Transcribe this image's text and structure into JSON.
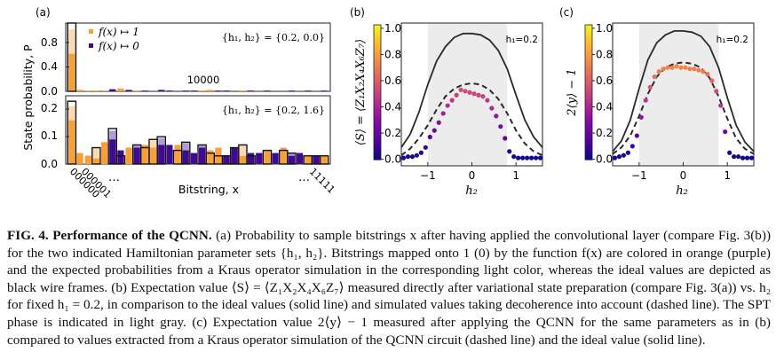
{
  "panel_a": {
    "tag": "(a)",
    "ylabel": "State probability, P",
    "legend": [
      {
        "label": "f(x) ↦ 1",
        "color": "#f7a03a"
      },
      {
        "label": "f(x) ↦ 0",
        "color": "#3d0a91"
      }
    ],
    "top_params": "{h₁, h₂} = {0.2, 0.0}",
    "bottom_params": "{h₁, h₂} = {0.2, 1.6}",
    "annotation": "10000",
    "top_yticks": [
      "0.0",
      "0.4",
      "0.8"
    ],
    "bottom_yticks": [
      "0.0",
      "0.1",
      "0.2"
    ],
    "xlabel": "Bitstring, x",
    "xtick_left": "000000",
    "xtick_left2": "000001",
    "xtick_dots_left": "…",
    "xtick_dots_right": "…",
    "xtick_right": "11111"
  },
  "panel_b": {
    "tag": "(b)",
    "ylabel": "⟨S⟩ = ⟨Z₁X₂X₄X₆Z₇⟩",
    "xlabel": "h₂",
    "inset": "h₁=0.2",
    "yticks": [
      "0.0",
      "0.2",
      "0.4",
      "0.6",
      "0.8",
      "1.0"
    ],
    "xticks": [
      "−1",
      "0",
      "1"
    ]
  },
  "panel_c": {
    "tag": "(c)",
    "ylabel": "2⟨y⟩ − 1",
    "xlabel": "h₂",
    "inset": "h₁=0.2",
    "yticks": [
      "0.0",
      "0.2",
      "0.4",
      "0.6",
      "0.8",
      "1.0"
    ],
    "xticks": [
      "−1",
      "0",
      "1"
    ]
  },
  "colors": {
    "one": "#f7a03a",
    "zero": "#3d0a91",
    "spt": "#ececec"
  },
  "caption": {
    "fig_label": "FIG. 4.",
    "bold_title": "Performance of the QCNN.",
    "text": "(a) Probability to sample bitstrings x after having applied the convolutional layer (compare Fig. 3(b)) for the two indicated Hamiltonian parameter sets {h₁, h₂}. Bitstrings mapped onto 1 (0) by the function f(x) are colored in orange (purple) and the expected probabilities from a Kraus operator simulation in the corresponding light color, whereas the ideal values are depicted as black wire frames. (b) Expectation value ⟨S⟩ = ⟨Z₁X₂X₄X₆Z₇⟩ measured directly after variational state preparation (compare Fig. 3(a)) vs. h₂ for fixed h₁ = 0.2, in comparison to the ideal values (solid line) and simulated values taking decoherence into account (dashed line). The SPT phase is indicated in light gray. (c) Expectation value 2⟨y⟩ − 1 measured after applying the QCNN for the same parameters as in (b) compared to values extracted from a Kraus operator simulation of the QCNN circuit (dashed line) and the ideal value (solid line)."
  },
  "chart_data": [
    {
      "type": "bar",
      "title": "",
      "panel": "a-top",
      "params": "{h1,h2}={0.2,0.0}",
      "ylabel": "State probability, P",
      "ylim": [
        0,
        1.0
      ],
      "series": [
        {
          "name": "f(x) ↦ 1",
          "values": [
            0.55,
            0.02,
            0.01,
            0.01,
            0.01,
            0.0,
            0.04,
            0.0,
            0.01,
            0.0,
            0.0,
            0.0,
            0.0,
            0.0,
            0.0,
            0.0,
            0.01,
            0.02,
            0.0,
            0.0,
            0.0,
            0.01,
            0.0,
            0.0,
            0.0,
            0.0,
            0.0,
            0.0,
            0.0,
            0.0,
            0.0,
            0.0
          ]
        },
        {
          "name": "f(x) ↦ 0",
          "values": [
            0.0,
            0.0,
            0.02,
            0.03,
            0.0,
            0.03,
            0.0,
            0.02,
            0.0,
            0.01,
            0.0,
            0.02,
            0.01,
            0.0,
            0.01,
            0.01,
            0.0,
            0.0,
            0.01,
            0.01,
            0.0,
            0.0,
            0.01,
            0.0,
            0.01,
            0.0,
            0.0,
            0.01,
            0.0,
            0.01,
            0.0,
            0.01
          ]
        },
        {
          "name": "ideal",
          "values": [
            1.0,
            0.0,
            0.0,
            0.0,
            0.0,
            0.0,
            0.0,
            0.0,
            0.0,
            0.0,
            0.0,
            0.0,
            0.0,
            0.0,
            0.0,
            0.0,
            0.0,
            0.0,
            0.0,
            0.0,
            0.0,
            0.0,
            0.0,
            0.0,
            0.0,
            0.0,
            0.0,
            0.0,
            0.0,
            0.0,
            0.0,
            0.0
          ]
        }
      ]
    },
    {
      "type": "bar",
      "title": "",
      "panel": "a-bottom",
      "params": "{h1,h2}={0.2,1.6}",
      "ylim": [
        0,
        0.25
      ],
      "series": [
        {
          "name": "f(x) ↦ 1",
          "values": [
            0.16,
            0.04,
            0.03,
            0.02,
            0.08,
            0.0,
            0.0,
            0.06,
            0.0,
            0.07,
            0.06,
            0.0,
            0.0,
            0.07,
            0.0,
            0.0,
            0.0,
            0.05,
            0.06,
            0.0,
            0.0,
            0.03,
            0.0,
            0.0,
            0.05,
            0.0,
            0.06,
            0.0,
            0.0,
            0.03,
            0.0,
            0.03
          ]
        },
        {
          "name": "f(x) ↦ 0",
          "values": [
            0.0,
            0.0,
            0.0,
            0.0,
            0.0,
            0.09,
            0.05,
            0.0,
            0.06,
            0.0,
            0.0,
            0.07,
            0.07,
            0.0,
            0.05,
            0.04,
            0.06,
            0.0,
            0.0,
            0.03,
            0.06,
            0.0,
            0.04,
            0.04,
            0.0,
            0.04,
            0.0,
            0.03,
            0.04,
            0.0,
            0.03,
            0.0
          ]
        },
        {
          "name": "ideal",
          "values": [
            0.23,
            0.0,
            0.0,
            0.06,
            0.0,
            0.13,
            0.03,
            0.0,
            0.07,
            0.06,
            0.09,
            0.1,
            0.0,
            0.05,
            0.08,
            0.0,
            0.07,
            0.04,
            0.03,
            0.03,
            0.06,
            0.07,
            0.03,
            0.0,
            0.05,
            0.0,
            0.05,
            0.04,
            0.0,
            0.03,
            0.03,
            0.03
          ]
        }
      ]
    },
    {
      "type": "line",
      "title": "",
      "panel": "b",
      "xlabel": "h₂",
      "ylabel": "⟨S⟩ = ⟨Z₁X₂X₄X₆Z₇⟩",
      "xlim": [
        -1.6,
        1.6
      ],
      "ylim": [
        0,
        1.0
      ],
      "spt_range": [
        -1.0,
        0.8
      ],
      "series": [
        {
          "name": "ideal (solid)",
          "x": [
            -1.6,
            -1.4,
            -1.2,
            -1.0,
            -0.8,
            -0.6,
            -0.4,
            -0.2,
            0.0,
            0.2,
            0.4,
            0.6,
            0.8,
            1.0,
            1.2,
            1.4,
            1.6
          ],
          "y": [
            0.09,
            0.19,
            0.36,
            0.57,
            0.75,
            0.86,
            0.93,
            0.96,
            0.96,
            0.95,
            0.91,
            0.83,
            0.69,
            0.49,
            0.3,
            0.17,
            0.09
          ]
        },
        {
          "name": "simulated (dashed)",
          "x": [
            -1.6,
            -1.4,
            -1.2,
            -1.0,
            -0.8,
            -0.6,
            -0.4,
            -0.2,
            0.0,
            0.2,
            0.4,
            0.6,
            0.8,
            1.0,
            1.2,
            1.4,
            1.6
          ],
          "y": [
            0.03,
            0.08,
            0.16,
            0.26,
            0.38,
            0.48,
            0.54,
            0.57,
            0.58,
            0.57,
            0.53,
            0.46,
            0.35,
            0.22,
            0.12,
            0.06,
            0.03
          ]
        },
        {
          "name": "measured",
          "x": [
            -1.55,
            -1.45,
            -1.35,
            -1.25,
            -1.15,
            -1.05,
            -0.95,
            -0.85,
            -0.75,
            -0.65,
            -0.55,
            -0.45,
            -0.35,
            -0.25,
            -0.15,
            -0.05,
            0.05,
            0.15,
            0.25,
            0.35,
            0.45,
            0.55,
            0.65,
            0.75,
            0.85,
            0.95,
            1.05,
            1.15,
            1.25,
            1.35,
            1.45,
            1.55
          ],
          "y": [
            0.01,
            0.02,
            0.02,
            0.03,
            0.05,
            0.09,
            0.17,
            0.22,
            0.28,
            0.35,
            0.41,
            0.45,
            0.49,
            0.53,
            0.52,
            0.51,
            0.5,
            0.49,
            0.48,
            0.45,
            0.39,
            0.33,
            0.25,
            0.16,
            0.06,
            0.02,
            0.01,
            0.01,
            0.01,
            0.01,
            0.01,
            0.01
          ]
        }
      ]
    },
    {
      "type": "line",
      "title": "",
      "panel": "c",
      "xlabel": "h₂",
      "ylabel": "2⟨y⟩ − 1",
      "xlim": [
        -1.6,
        1.6
      ],
      "ylim": [
        0,
        1.0
      ],
      "spt_range": [
        -1.0,
        0.8
      ],
      "series": [
        {
          "name": "ideal (solid)",
          "x": [
            -1.6,
            -1.4,
            -1.2,
            -1.0,
            -0.8,
            -0.6,
            -0.4,
            -0.2,
            0.0,
            0.2,
            0.4,
            0.6,
            0.8,
            1.0,
            1.2,
            1.4,
            1.6
          ],
          "y": [
            0.06,
            0.14,
            0.3,
            0.54,
            0.76,
            0.89,
            0.95,
            0.98,
            0.98,
            0.97,
            0.94,
            0.86,
            0.7,
            0.47,
            0.26,
            0.13,
            0.06
          ]
        },
        {
          "name": "simulated (dashed)",
          "x": [
            -1.6,
            -1.4,
            -1.2,
            -1.0,
            -0.8,
            -0.6,
            -0.4,
            -0.2,
            0.0,
            0.2,
            0.4,
            0.6,
            0.8,
            1.0,
            1.2,
            1.4,
            1.6
          ],
          "y": [
            0.04,
            0.09,
            0.18,
            0.33,
            0.5,
            0.63,
            0.7,
            0.73,
            0.74,
            0.73,
            0.7,
            0.62,
            0.48,
            0.31,
            0.16,
            0.08,
            0.04
          ]
        },
        {
          "name": "measured",
          "x": [
            -1.55,
            -1.45,
            -1.35,
            -1.25,
            -1.15,
            -1.05,
            -0.95,
            -0.85,
            -0.75,
            -0.65,
            -0.55,
            -0.45,
            -0.35,
            -0.25,
            -0.15,
            -0.05,
            0.05,
            0.15,
            0.25,
            0.35,
            0.45,
            0.55,
            0.65,
            0.75,
            0.85,
            0.95,
            1.05,
            1.15,
            1.25,
            1.35,
            1.45,
            1.55
          ],
          "y": [
            0.01,
            0.02,
            0.03,
            0.05,
            0.1,
            0.18,
            0.32,
            0.45,
            0.55,
            0.63,
            0.67,
            0.69,
            0.7,
            0.7,
            0.71,
            0.7,
            0.7,
            0.69,
            0.69,
            0.68,
            0.67,
            0.65,
            0.6,
            0.52,
            0.41,
            0.21,
            0.05,
            0.02,
            0.02,
            0.01,
            0.01,
            0.01
          ]
        }
      ]
    }
  ]
}
